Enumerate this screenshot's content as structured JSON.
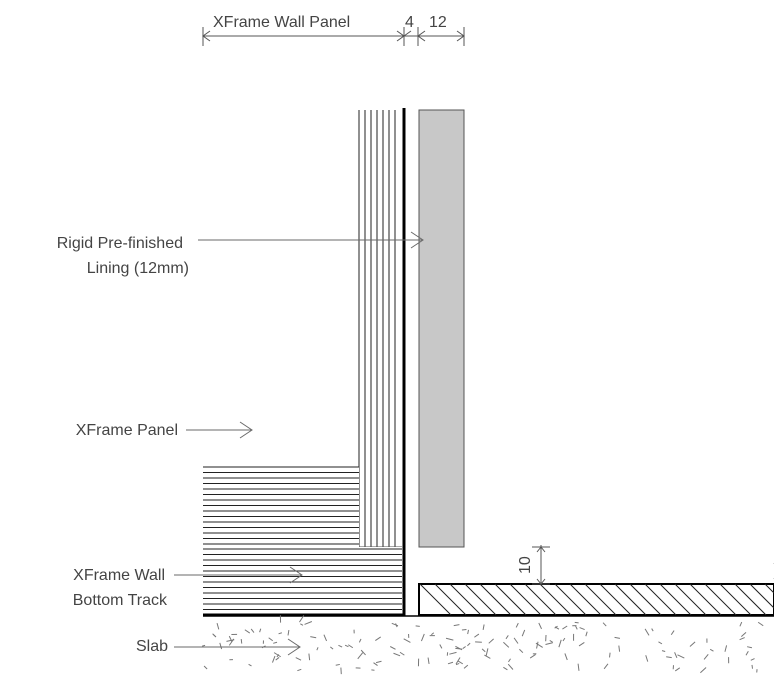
{
  "dimensions": {
    "wall_panel": "XFrame Wall Panel",
    "gap": "4",
    "lining_thickness": "12",
    "step_height": "10"
  },
  "labels": {
    "lining_line1": "Rigid Pre-finished",
    "lining_line2": "Lining (12mm)",
    "panel": "XFrame Panel",
    "track_line1": "XFrame Wall",
    "track_line2": "Bottom Track",
    "slab": "Slab"
  },
  "colors": {
    "lining_fill": "#c8c8c8",
    "line": "#000000",
    "annotation": "#6a6a6a"
  }
}
